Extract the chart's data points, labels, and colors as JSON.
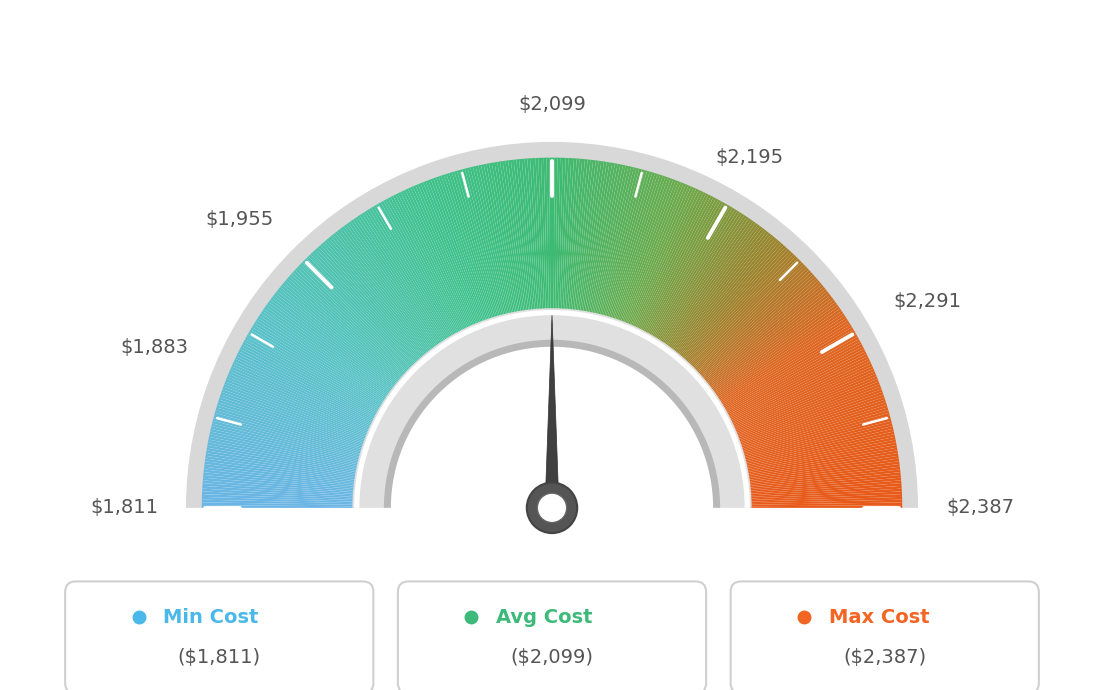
{
  "min_val": 1811,
  "avg_val": 2099,
  "max_val": 2387,
  "tick_labels": [
    "$1,811",
    "$1,883",
    "$1,955",
    "$2,099",
    "$2,195",
    "$2,291",
    "$2,387"
  ],
  "tick_values": [
    1811,
    1883,
    1955,
    2099,
    2195,
    2291,
    2387
  ],
  "legend_labels": [
    "Min Cost",
    "Avg Cost",
    "Max Cost"
  ],
  "legend_values": [
    "($1,811)",
    "($2,099)",
    "($2,387)"
  ],
  "legend_colors": [
    "#4ab8e8",
    "#3dba7a",
    "#f26522"
  ],
  "background_color": "#ffffff",
  "needle_value": 2099,
  "color_stops": [
    [
      0.0,
      [
        0.42,
        0.71,
        0.9
      ]
    ],
    [
      0.18,
      [
        0.35,
        0.76,
        0.78
      ]
    ],
    [
      0.38,
      [
        0.25,
        0.76,
        0.55
      ]
    ],
    [
      0.5,
      [
        0.24,
        0.73,
        0.45
      ]
    ],
    [
      0.62,
      [
        0.42,
        0.67,
        0.3
      ]
    ],
    [
      0.72,
      [
        0.6,
        0.52,
        0.18
      ]
    ],
    [
      0.82,
      [
        0.87,
        0.4,
        0.13
      ]
    ],
    [
      1.0,
      [
        0.91,
        0.35,
        0.1
      ]
    ]
  ]
}
